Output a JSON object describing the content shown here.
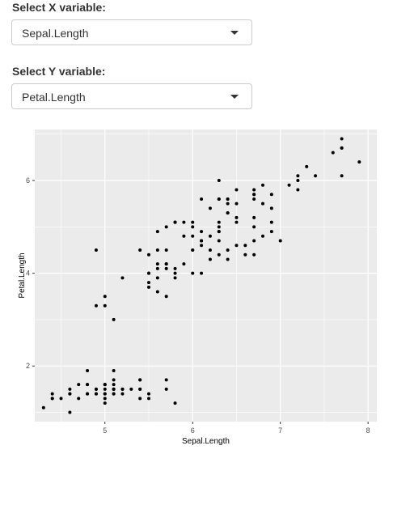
{
  "controls": {
    "x": {
      "label": "Select X variable:",
      "value": "Sepal.Length"
    },
    "y": {
      "label": "Select Y variable:",
      "value": "Petal.Length"
    }
  },
  "icons": {
    "dropdown": "caret-down-icon"
  },
  "colors": {
    "panel": "#EBEBEB",
    "grid": "#FFFFFF",
    "point": "#000000",
    "axis_text": "#4D4D4D"
  },
  "chart_data": {
    "type": "scatter",
    "xlabel": "Sepal.Length",
    "ylabel": "Petal.Length",
    "xlim": [
      4.2,
      8.1
    ],
    "ylim": [
      0.8,
      7.1
    ],
    "xticks": [
      5,
      6,
      7,
      8
    ],
    "yticks": [
      2,
      4,
      6
    ],
    "grid": true,
    "points": [
      [
        5.1,
        1.4
      ],
      [
        4.9,
        1.4
      ],
      [
        4.7,
        1.3
      ],
      [
        4.6,
        1.5
      ],
      [
        5.0,
        1.4
      ],
      [
        5.4,
        1.7
      ],
      [
        4.6,
        1.4
      ],
      [
        5.0,
        1.5
      ],
      [
        4.4,
        1.4
      ],
      [
        4.9,
        1.5
      ],
      [
        5.4,
        1.5
      ],
      [
        4.8,
        1.6
      ],
      [
        4.8,
        1.4
      ],
      [
        4.3,
        1.1
      ],
      [
        5.8,
        1.2
      ],
      [
        5.7,
        1.5
      ],
      [
        5.4,
        1.3
      ],
      [
        5.1,
        1.4
      ],
      [
        5.7,
        1.7
      ],
      [
        5.1,
        1.5
      ],
      [
        5.4,
        1.7
      ],
      [
        5.1,
        1.5
      ],
      [
        4.6,
        1.0
      ],
      [
        5.1,
        1.7
      ],
      [
        4.8,
        1.9
      ],
      [
        5.0,
        1.6
      ],
      [
        5.0,
        1.6
      ],
      [
        5.2,
        1.5
      ],
      [
        5.2,
        1.4
      ],
      [
        4.7,
        1.6
      ],
      [
        4.8,
        1.6
      ],
      [
        5.4,
        1.5
      ],
      [
        5.2,
        1.5
      ],
      [
        5.5,
        1.4
      ],
      [
        4.9,
        1.5
      ],
      [
        5.0,
        1.2
      ],
      [
        5.5,
        1.3
      ],
      [
        4.9,
        1.4
      ],
      [
        4.4,
        1.3
      ],
      [
        5.1,
        1.5
      ],
      [
        5.0,
        1.3
      ],
      [
        4.5,
        1.3
      ],
      [
        4.4,
        1.3
      ],
      [
        5.0,
        1.6
      ],
      [
        5.1,
        1.9
      ],
      [
        4.8,
        1.4
      ],
      [
        5.1,
        1.6
      ],
      [
        4.6,
        1.4
      ],
      [
        5.3,
        1.5
      ],
      [
        5.0,
        1.4
      ],
      [
        7.0,
        4.7
      ],
      [
        6.4,
        4.5
      ],
      [
        6.9,
        4.9
      ],
      [
        5.5,
        4.0
      ],
      [
        6.5,
        4.6
      ],
      [
        5.7,
        4.5
      ],
      [
        6.3,
        4.7
      ],
      [
        4.9,
        3.3
      ],
      [
        6.6,
        4.6
      ],
      [
        5.2,
        3.9
      ],
      [
        5.0,
        3.5
      ],
      [
        5.9,
        4.2
      ],
      [
        6.0,
        4.0
      ],
      [
        6.1,
        4.7
      ],
      [
        5.6,
        3.6
      ],
      [
        6.7,
        4.4
      ],
      [
        5.6,
        4.5
      ],
      [
        5.8,
        4.1
      ],
      [
        6.2,
        4.5
      ],
      [
        5.6,
        3.9
      ],
      [
        5.9,
        4.8
      ],
      [
        6.1,
        4.0
      ],
      [
        6.3,
        4.9
      ],
      [
        6.1,
        4.7
      ],
      [
        6.4,
        4.3
      ],
      [
        6.6,
        4.4
      ],
      [
        6.8,
        4.8
      ],
      [
        6.7,
        5.0
      ],
      [
        6.0,
        4.5
      ],
      [
        5.7,
        3.5
      ],
      [
        5.5,
        3.8
      ],
      [
        5.5,
        3.7
      ],
      [
        5.8,
        3.9
      ],
      [
        6.0,
        5.1
      ],
      [
        5.4,
        4.5
      ],
      [
        6.0,
        4.5
      ],
      [
        6.7,
        4.7
      ],
      [
        6.3,
        4.4
      ],
      [
        5.6,
        4.1
      ],
      [
        5.5,
        4.0
      ],
      [
        5.5,
        4.4
      ],
      [
        6.1,
        4.6
      ],
      [
        5.8,
        4.0
      ],
      [
        5.0,
        3.3
      ],
      [
        5.6,
        4.2
      ],
      [
        5.7,
        4.2
      ],
      [
        5.7,
        4.2
      ],
      [
        6.2,
        4.3
      ],
      [
        5.1,
        3.0
      ],
      [
        5.7,
        4.1
      ],
      [
        6.3,
        6.0
      ],
      [
        5.8,
        5.1
      ],
      [
        7.1,
        5.9
      ],
      [
        6.3,
        5.6
      ],
      [
        6.5,
        5.8
      ],
      [
        7.6,
        6.6
      ],
      [
        4.9,
        4.5
      ],
      [
        7.3,
        6.3
      ],
      [
        6.7,
        5.8
      ],
      [
        7.2,
        6.1
      ],
      [
        6.5,
        5.1
      ],
      [
        6.4,
        5.3
      ],
      [
        6.8,
        5.5
      ],
      [
        5.7,
        5.0
      ],
      [
        5.8,
        5.1
      ],
      [
        6.4,
        5.3
      ],
      [
        6.5,
        5.5
      ],
      [
        7.7,
        6.7
      ],
      [
        7.7,
        6.9
      ],
      [
        6.0,
        5.0
      ],
      [
        6.9,
        5.7
      ],
      [
        5.6,
        4.9
      ],
      [
        7.7,
        6.7
      ],
      [
        6.3,
        4.9
      ],
      [
        6.7,
        5.7
      ],
      [
        7.2,
        6.0
      ],
      [
        6.2,
        4.8
      ],
      [
        6.1,
        4.9
      ],
      [
        6.4,
        5.6
      ],
      [
        7.2,
        5.8
      ],
      [
        7.4,
        6.1
      ],
      [
        7.9,
        6.4
      ],
      [
        6.4,
        5.6
      ],
      [
        6.3,
        5.1
      ],
      [
        6.1,
        5.6
      ],
      [
        7.7,
        6.1
      ],
      [
        6.3,
        5.6
      ],
      [
        6.4,
        5.5
      ],
      [
        6.0,
        4.8
      ],
      [
        6.9,
        5.4
      ],
      [
        6.7,
        5.6
      ],
      [
        6.9,
        5.1
      ],
      [
        5.8,
        5.1
      ],
      [
        6.8,
        5.9
      ],
      [
        6.7,
        5.7
      ],
      [
        6.7,
        5.2
      ],
      [
        6.3,
        5.0
      ],
      [
        6.5,
        5.2
      ],
      [
        6.2,
        5.4
      ],
      [
        5.9,
        5.1
      ]
    ]
  }
}
